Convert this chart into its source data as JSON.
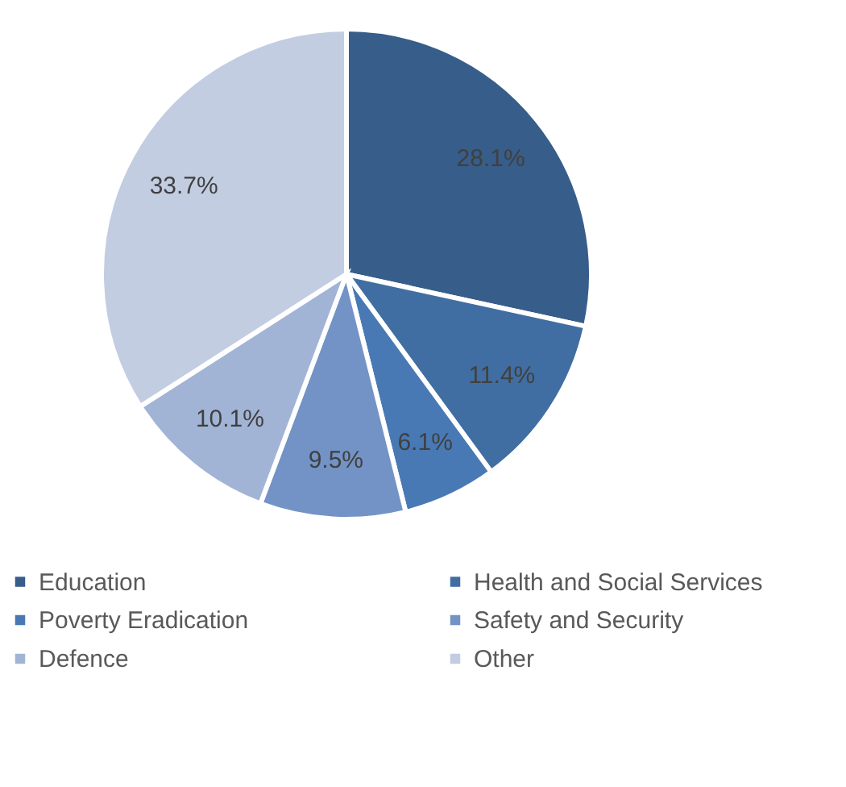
{
  "chart_data": {
    "type": "pie",
    "categories": [
      "Education",
      "Health and Social Services",
      "Poverty Eradication",
      "Safety and Security",
      "Defence",
      "Other"
    ],
    "values": [
      28.1,
      11.4,
      6.1,
      9.5,
      10.1,
      33.7
    ],
    "colors": [
      "#375d8a",
      "#406ea3",
      "#4879b4",
      "#7393c6",
      "#a2b4d5",
      "#c2cde2"
    ],
    "value_labels": [
      "28.1%",
      "11.4%",
      "6.1%",
      "9.5%",
      "10.1%",
      "33.7%"
    ],
    "legend": "bottom"
  }
}
